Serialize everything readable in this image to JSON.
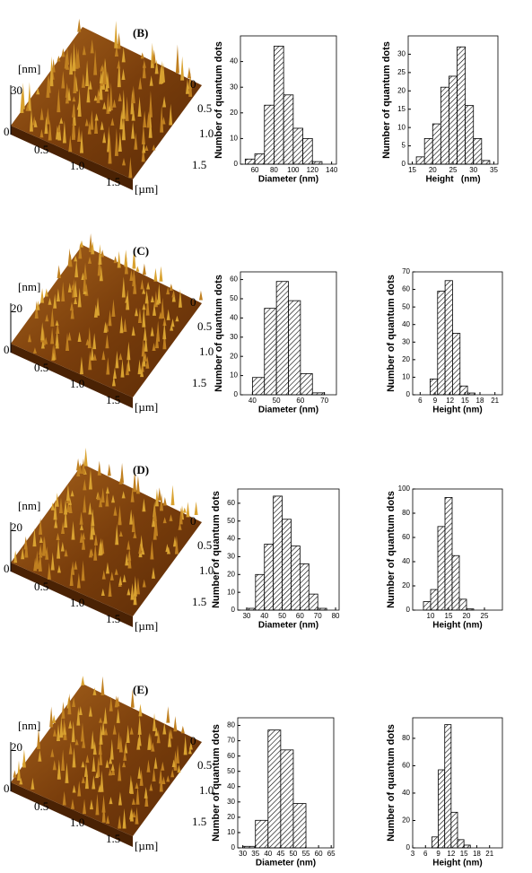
{
  "chart_data": [
    {
      "type": "histogram",
      "x_label": "Diameter (nm)",
      "y_label": "Number of quantum dots",
      "bins": [
        50,
        60,
        70,
        80,
        90,
        100,
        110,
        120,
        130
      ],
      "values": [
        2,
        4,
        23,
        46,
        27,
        14,
        10,
        1
      ],
      "xlim": [
        45,
        145
      ],
      "xticks": [
        60,
        80,
        100,
        120,
        140
      ],
      "ylim": [
        0,
        50
      ],
      "yticks": [
        0,
        10,
        20,
        30,
        40
      ]
    },
    {
      "type": "histogram",
      "x_label": "Height   (nm)",
      "y_label": "Number of quantum dots",
      "bins": [
        16,
        18,
        20,
        22,
        24,
        26,
        28,
        30,
        32,
        34
      ],
      "values": [
        2,
        7,
        11,
        21,
        24,
        32,
        16,
        7,
        1
      ],
      "xlim": [
        14,
        36
      ],
      "xticks": [
        15,
        20,
        25,
        30,
        35
      ],
      "ylim": [
        0,
        35
      ],
      "yticks": [
        0,
        5,
        10,
        15,
        20,
        25,
        30
      ]
    },
    {
      "type": "histogram",
      "x_label": "Diameter (nm)",
      "y_label": "Number of quantum dots",
      "bins": [
        40,
        45,
        50,
        55,
        60,
        65,
        70
      ],
      "values": [
        9,
        45,
        59,
        49,
        11,
        1
      ],
      "xlim": [
        35,
        75
      ],
      "xticks": [
        40,
        50,
        60,
        70
      ],
      "ylim": [
        0,
        64
      ],
      "yticks": [
        0,
        10,
        20,
        30,
        40,
        50,
        60
      ]
    },
    {
      "type": "histogram",
      "x_label": "Height (nm)",
      "y_label": "Number of quantum dots",
      "bins": [
        8,
        9.5,
        11,
        12.5,
        14,
        15.5,
        17
      ],
      "values": [
        9,
        59,
        65,
        35,
        5,
        1
      ],
      "xlim": [
        4.5,
        22.5
      ],
      "xticks": [
        6,
        9,
        12,
        15,
        18,
        21
      ],
      "ylim": [
        0,
        70
      ],
      "yticks": [
        0,
        10,
        20,
        30,
        40,
        50,
        60,
        70
      ]
    },
    {
      "type": "histogram",
      "x_label": "Diameter (nm)",
      "y_label": "Number of quantum dots",
      "bins": [
        30,
        35,
        40,
        45,
        50,
        55,
        60,
        65,
        70,
        75
      ],
      "values": [
        1,
        20,
        37,
        64,
        51,
        36,
        26,
        9,
        1
      ],
      "xlim": [
        25,
        82
      ],
      "xticks": [
        30,
        40,
        50,
        60,
        70,
        80
      ],
      "ylim": [
        0,
        68
      ],
      "yticks": [
        0,
        10,
        20,
        30,
        40,
        50,
        60
      ]
    },
    {
      "type": "histogram",
      "x_label": "Height (nm)",
      "y_label": "Number of quantum dots",
      "bins": [
        8,
        10,
        12,
        14,
        16,
        18,
        20,
        22
      ],
      "values": [
        7,
        17,
        69,
        93,
        45,
        9,
        1
      ],
      "xlim": [
        5,
        30
      ],
      "xticks": [
        10,
        15,
        20,
        25
      ],
      "ylim": [
        0,
        100
      ],
      "yticks": [
        0,
        20,
        40,
        60,
        80,
        100
      ]
    },
    {
      "type": "histogram",
      "x_label": "Diameter (nm)",
      "y_label": "Number of quantum dots",
      "bins": [
        30,
        35,
        40,
        45,
        50,
        55
      ],
      "values": [
        1,
        18,
        77,
        64,
        29
      ],
      "xlim": [
        28,
        66
      ],
      "xticks": [
        30,
        35,
        40,
        45,
        50,
        55,
        60,
        65
      ],
      "ylim": [
        0,
        85
      ],
      "yticks": [
        0,
        10,
        20,
        30,
        40,
        50,
        60,
        70,
        80
      ]
    },
    {
      "type": "histogram",
      "x_label": "Height (nm)",
      "y_label": "Number of quantum dots",
      "bins": [
        7.5,
        9,
        10.5,
        12,
        13.5,
        15,
        16.5
      ],
      "values": [
        8,
        57,
        90,
        26,
        6,
        2
      ],
      "xlim": [
        3,
        24
      ],
      "xticks": [
        3,
        6,
        9,
        12,
        15,
        18,
        21
      ],
      "ylim": [
        0,
        95
      ],
      "yticks": [
        0,
        20,
        40,
        60,
        80
      ]
    }
  ],
  "panels": [
    {
      "label": "(B)",
      "z_unit": "[nm]",
      "z_ticks": [
        "30",
        "0"
      ],
      "x_ticks": [
        "0.5",
        "1.0",
        "1.5"
      ],
      "y_ticks": [
        "0",
        "0.5",
        "1.0",
        "1.5"
      ],
      "xy_unit": "[µm]"
    },
    {
      "label": "(C)",
      "z_unit": "[nm]",
      "z_ticks": [
        "20",
        "0"
      ],
      "x_ticks": [
        "0.5",
        "1.0",
        "1.5"
      ],
      "y_ticks": [
        "0",
        "0.5",
        "1.0",
        "1.5"
      ],
      "xy_unit": "[µm]"
    },
    {
      "label": "(D)",
      "z_unit": "[nm]",
      "z_ticks": [
        "20",
        "0"
      ],
      "x_ticks": [
        "0.5",
        "1.0",
        "1.5"
      ],
      "y_ticks": [
        "0",
        "0.5",
        "1.0",
        "1.5"
      ],
      "xy_unit": "[µm]"
    },
    {
      "label": "(E)",
      "z_unit": "[nm]",
      "z_ticks": [
        "20",
        "0"
      ],
      "x_ticks": [
        "0.5",
        "1.0",
        "1.5"
      ],
      "y_ticks": [
        "0",
        "0.5",
        "1.0",
        "1.5"
      ],
      "xy_unit": "[µm]"
    }
  ]
}
